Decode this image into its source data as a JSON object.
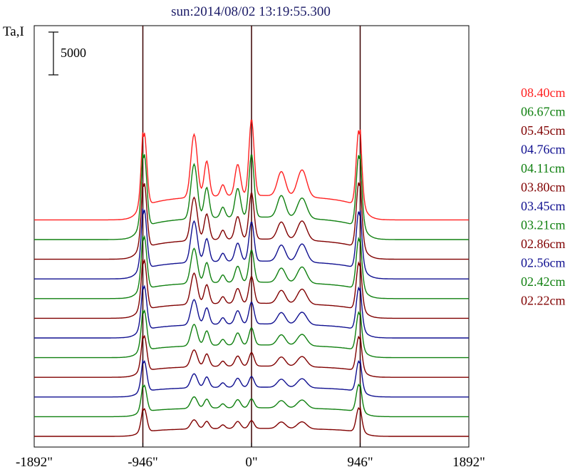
{
  "chart_data": {
    "type": "line",
    "title": "sun:2014/08/02 13:19:55.300",
    "ylabel": "Ta,I",
    "xlabel": "",
    "x_unit": "arcsec",
    "xlim": [
      -1892,
      1892
    ],
    "x_ticks": [
      -1892,
      -946,
      0,
      946,
      1892
    ],
    "x_tick_labels": [
      "-1892\"",
      "-946\"",
      "0\"",
      "946\"",
      "1892\""
    ],
    "vertical_reference_lines": [
      -946,
      0,
      946
    ],
    "scale_bar": {
      "value": 5000,
      "label": "5000"
    },
    "grid": false,
    "legend_position": "right",
    "baseline_step": 2300,
    "series": [
      {
        "name": "08.40cm",
        "color": "#ff2020",
        "baseline": 25300,
        "peaks": {
          "limb_left": 9200,
          "feat_a": 10200,
          "feat_b": 7000,
          "feat_c": 5200,
          "feat_d": 6500,
          "center": 11800,
          "feat_e": 5700,
          "feat_f": 6000,
          "limb_right": 9500
        }
      },
      {
        "name": "06.67cm",
        "color": "#108010",
        "baseline": 23000,
        "peaks": {
          "limb_left": 9100,
          "feat_a": 9000,
          "feat_b": 6200,
          "feat_c": 4800,
          "feat_d": 6000,
          "center": 10000,
          "feat_e": 5200,
          "feat_f": 5000,
          "limb_right": 9000
        }
      },
      {
        "name": "05.45cm",
        "color": "#800000",
        "baseline": 20700,
        "peaks": {
          "limb_left": 8100,
          "feat_a": 7400,
          "feat_b": 5400,
          "feat_c": 4300,
          "feat_d": 5000,
          "center": 7800,
          "feat_e": 4400,
          "feat_f": 4600,
          "limb_right": 8200
        }
      },
      {
        "name": "04.76cm",
        "color": "#101090",
        "baseline": 18400,
        "peaks": {
          "limb_left": 7400,
          "feat_a": 6900,
          "feat_b": 4800,
          "feat_c": 3800,
          "feat_d": 4200,
          "center": 6700,
          "feat_e": 4000,
          "feat_f": 4200,
          "limb_right": 7200
        }
      },
      {
        "name": "04.11cm",
        "color": "#108010",
        "baseline": 16100,
        "peaks": {
          "limb_left": 6600,
          "feat_a": 6000,
          "feat_b": 4300,
          "feat_c": 3500,
          "feat_d": 3800,
          "center": 5700,
          "feat_e": 3600,
          "feat_f": 3800,
          "limb_right": 6400
        }
      },
      {
        "name": "03.80cm",
        "color": "#800000",
        "baseline": 13800,
        "peaks": {
          "limb_left": 6200,
          "feat_a": 5400,
          "feat_b": 4000,
          "feat_c": 3200,
          "feat_d": 3500,
          "center": 4900,
          "feat_e": 3300,
          "feat_f": 3500,
          "limb_right": 5900
        }
      },
      {
        "name": "03.45cm",
        "color": "#101090",
        "baseline": 11500,
        "peaks": {
          "limb_left": 5500,
          "feat_a": 4600,
          "feat_b": 3600,
          "feat_c": 3000,
          "feat_d": 3200,
          "center": 4200,
          "feat_e": 3000,
          "feat_f": 3100,
          "limb_right": 5300
        }
      },
      {
        "name": "03.21cm",
        "color": "#108010",
        "baseline": 9200,
        "peaks": {
          "limb_left": 5000,
          "feat_a": 4000,
          "feat_b": 3200,
          "feat_c": 2700,
          "feat_d": 2900,
          "center": 3500,
          "feat_e": 2700,
          "feat_f": 2800,
          "limb_right": 4800
        }
      },
      {
        "name": "02.86cm",
        "color": "#800000",
        "baseline": 6900,
        "peaks": {
          "limb_left": 4400,
          "feat_a": 3300,
          "feat_b": 2800,
          "feat_c": 2400,
          "feat_d": 2500,
          "center": 2900,
          "feat_e": 2400,
          "feat_f": 2500,
          "limb_right": 4300
        }
      },
      {
        "name": "02.56cm",
        "color": "#101090",
        "baseline": 4600,
        "peaks": {
          "limb_left": 3800,
          "feat_a": 2800,
          "feat_b": 2400,
          "feat_c": 2100,
          "feat_d": 2200,
          "center": 2400,
          "feat_e": 2100,
          "feat_f": 2200,
          "limb_right": 3800
        }
      },
      {
        "name": "02.42cm",
        "color": "#108010",
        "baseline": 2300,
        "peaks": {
          "limb_left": 3300,
          "feat_a": 2400,
          "feat_b": 2100,
          "feat_c": 1900,
          "feat_d": 2000,
          "center": 2100,
          "feat_e": 1900,
          "feat_f": 2000,
          "limb_right": 3400
        }
      },
      {
        "name": "02.22cm",
        "color": "#800000",
        "baseline": 0,
        "peaks": {
          "limb_left": 2900,
          "feat_a": 2000,
          "feat_b": 1800,
          "feat_c": 1700,
          "feat_d": 1750,
          "center": 1850,
          "feat_e": 1700,
          "feat_f": 1750,
          "limb_right": 3000
        }
      }
    ]
  }
}
